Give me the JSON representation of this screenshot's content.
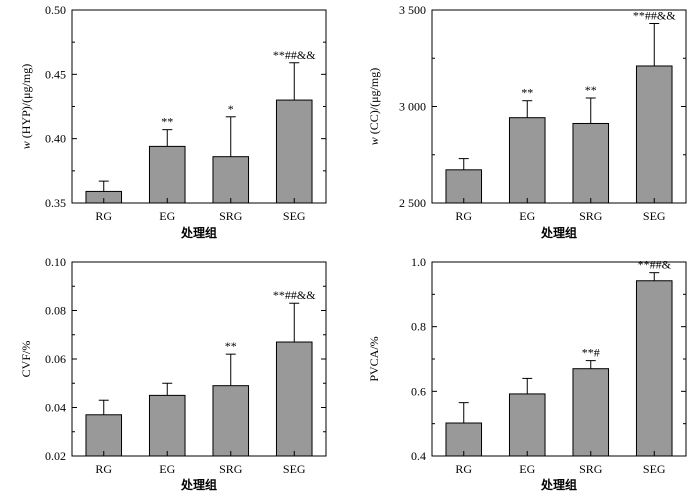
{
  "colors": {
    "bar": "#999999",
    "stroke": "#000000",
    "background": "#ffffff"
  },
  "chart_data": [
    {
      "type": "bar",
      "ylabel_prefix": "w",
      "ylabel": " (HYP)/(μg/mg)",
      "xlabel": "处理组",
      "categories": [
        "RG",
        "EG",
        "SRG",
        "SEG"
      ],
      "values": [
        0.359,
        0.394,
        0.386,
        0.43
      ],
      "errors": [
        0.008,
        0.013,
        0.031,
        0.029
      ],
      "annotations": [
        "",
        "**",
        "*",
        "**##&&"
      ],
      "ylim": [
        0.35,
        0.5
      ],
      "yticks": [
        0.35,
        0.4,
        0.45,
        0.5
      ],
      "ytick_labels": [
        "0.35",
        "0.40",
        "0.45",
        "0.50"
      ],
      "grid": false
    },
    {
      "type": "bar",
      "ylabel_prefix": "w",
      "ylabel": " (CC)/(μg/mg)",
      "xlabel": "处理组",
      "categories": [
        "RG",
        "EG",
        "SRG",
        "SEG"
      ],
      "values": [
        2672,
        2942,
        2912,
        3210
      ],
      "errors": [
        58,
        88,
        132,
        220
      ],
      "annotations": [
        "",
        "**",
        "**",
        "**##&&"
      ],
      "ylim": [
        2500,
        3500
      ],
      "yticks": [
        2500,
        3000,
        3500
      ],
      "ytick_labels": [
        "2 500",
        "3 000",
        "3 500"
      ],
      "grid": false
    },
    {
      "type": "bar",
      "ylabel_prefix": "",
      "ylabel": "CVF/%",
      "xlabel": "处理组",
      "categories": [
        "RG",
        "EG",
        "SRG",
        "SEG"
      ],
      "values": [
        0.037,
        0.045,
        0.049,
        0.067
      ],
      "errors": [
        0.006,
        0.005,
        0.013,
        0.016
      ],
      "annotations": [
        "",
        "",
        "**",
        "**##&&"
      ],
      "ylim": [
        0.02,
        0.1
      ],
      "yticks": [
        0.02,
        0.04,
        0.06,
        0.08,
        0.1
      ],
      "ytick_labels": [
        "0.02",
        "0.04",
        "0.06",
        "0.08",
        "0.10"
      ],
      "grid": false
    },
    {
      "type": "bar",
      "ylabel_prefix": "",
      "ylabel": "PVCA/%",
      "xlabel": "处理组",
      "categories": [
        "RG",
        "EG",
        "SRG",
        "SEG"
      ],
      "values": [
        0.502,
        0.592,
        0.67,
        0.942
      ],
      "errors": [
        0.063,
        0.048,
        0.025,
        0.025
      ],
      "annotations": [
        "",
        "",
        "**#",
        "**##&"
      ],
      "ylim": [
        0.4,
        1.0
      ],
      "yticks": [
        0.4,
        0.6,
        0.8,
        1.0
      ],
      "ytick_labels": [
        "0.4",
        "0.6",
        "0.8",
        "1.0"
      ],
      "grid": false
    }
  ]
}
